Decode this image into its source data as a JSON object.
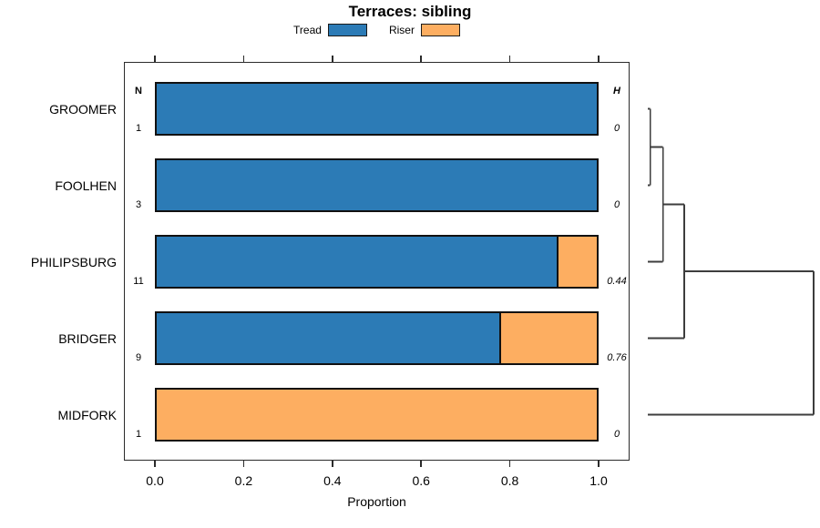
{
  "chart_data": {
    "type": "bar",
    "orientation": "horizontal",
    "stacked": true,
    "title": "Terraces: sibling",
    "xlabel": "Proportion",
    "xlim": [
      0,
      1
    ],
    "x_ticks": [
      "0.0",
      "0.2",
      "0.4",
      "0.6",
      "0.8",
      "1.0"
    ],
    "grid": false,
    "legend_position": "top-center",
    "n_header": "N",
    "h_header": "H",
    "categories": [
      "GROOMER",
      "FOOLHEN",
      "PHILIPSBURG",
      "BRIDGER",
      "MIDFORK"
    ],
    "n_values": [
      "1",
      "3",
      "11",
      "9",
      "1"
    ],
    "h_values": [
      "0",
      "0",
      "0.44",
      "0.76",
      "0"
    ],
    "series": [
      {
        "name": "Tread",
        "color": "#2C7BB6",
        "values": [
          1.0,
          1.0,
          0.909,
          0.778,
          0.0
        ]
      },
      {
        "name": "Riser",
        "color": "#FDAE61",
        "values": [
          0.0,
          0.0,
          0.091,
          0.222,
          1.0
        ]
      }
    ],
    "dendrogram": {
      "leaf_order": [
        "GROOMER",
        "FOOLHEN",
        "PHILIPSBURG",
        "BRIDGER",
        "MIDFORK"
      ],
      "merges": [
        {
          "a": [
            "leaf",
            0
          ],
          "b": [
            "leaf",
            1
          ],
          "height": 0.015
        },
        {
          "a": [
            "node",
            0
          ],
          "b": [
            "leaf",
            2
          ],
          "height": 0.092
        },
        {
          "a": [
            "node",
            1
          ],
          "b": [
            "leaf",
            3
          ],
          "height": 0.22
        },
        {
          "a": [
            "node",
            2
          ],
          "b": [
            "leaf",
            4
          ],
          "height": 1.0
        }
      ]
    },
    "colors": {
      "frame": "#2b2b2b",
      "bar_border": "#111111",
      "dendrogram": "#3d3d3d",
      "text": "#000000"
    }
  }
}
